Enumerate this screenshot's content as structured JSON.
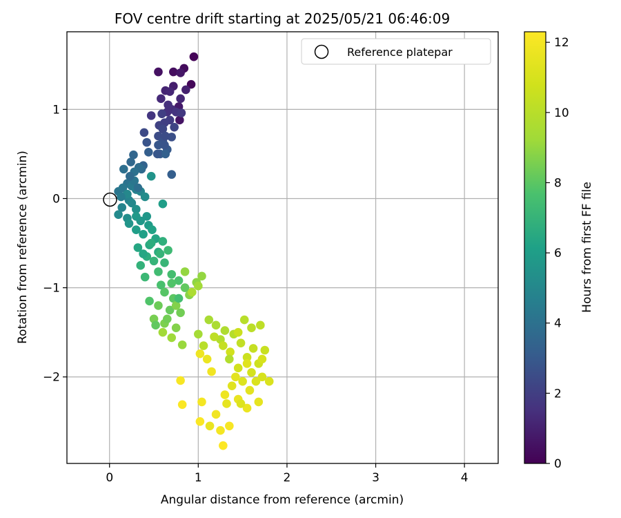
{
  "chart_data": {
    "type": "scatter",
    "title": "FOV centre drift starting at 2025/05/21 06:46:09",
    "xlabel": "Angular distance from reference (arcmin)",
    "ylabel": "Rotation from reference (arcmin)",
    "xlim": [
      -0.48,
      4.38
    ],
    "ylim": [
      -2.97,
      1.87
    ],
    "xticks": [
      0,
      1,
      2,
      3,
      4
    ],
    "yticks": [
      1,
      0,
      -1,
      -2
    ],
    "grid": true,
    "legend": {
      "placement": "top-right",
      "label": "Reference platepar"
    },
    "reference_point": {
      "x": 0,
      "y": 0
    },
    "colorbar": {
      "label": "Hours from first FF file",
      "range": [
        0,
        12.3
      ],
      "ticks": [
        0,
        2,
        4,
        6,
        8,
        10,
        12
      ],
      "colormap": "viridis"
    },
    "series": [
      {
        "points": [
          {
            "x": 0.95,
            "y": 1.59,
            "h": 0.1
          },
          {
            "x": 0.92,
            "y": 1.28,
            "h": 0.2
          },
          {
            "x": 0.84,
            "y": 1.46,
            "h": 0.3
          },
          {
            "x": 0.72,
            "y": 1.42,
            "h": 0.4
          },
          {
            "x": 0.55,
            "y": 1.42,
            "h": 0.5
          },
          {
            "x": 0.79,
            "y": 0.88,
            "h": 0.6
          },
          {
            "x": 0.8,
            "y": 1.41,
            "h": 0.7
          },
          {
            "x": 0.78,
            "y": 1.03,
            "h": 0.8
          },
          {
            "x": 0.72,
            "y": 1.26,
            "h": 0.9
          },
          {
            "x": 0.86,
            "y": 1.22,
            "h": 1.0
          },
          {
            "x": 0.63,
            "y": 1.21,
            "h": 1.1
          },
          {
            "x": 0.68,
            "y": 1.2,
            "h": 1.2
          },
          {
            "x": 0.58,
            "y": 1.12,
            "h": 1.3
          },
          {
            "x": 0.7,
            "y": 1.0,
            "h": 1.4
          },
          {
            "x": 0.65,
            "y": 0.97,
            "h": 1.5
          },
          {
            "x": 0.75,
            "y": 0.97,
            "h": 1.6
          },
          {
            "x": 0.47,
            "y": 0.93,
            "h": 1.7
          },
          {
            "x": 0.81,
            "y": 0.96,
            "h": 1.8
          },
          {
            "x": 0.68,
            "y": 0.88,
            "h": 1.9
          },
          {
            "x": 0.62,
            "y": 0.85,
            "h": 2.0
          },
          {
            "x": 0.56,
            "y": 0.82,
            "h": 2.1
          },
          {
            "x": 0.73,
            "y": 0.8,
            "h": 2.2
          },
          {
            "x": 0.6,
            "y": 0.78,
            "h": 2.3
          },
          {
            "x": 0.39,
            "y": 0.74,
            "h": 2.4
          },
          {
            "x": 0.55,
            "y": 0.7,
            "h": 2.5
          },
          {
            "x": 0.7,
            "y": 0.69,
            "h": 2.6
          },
          {
            "x": 0.6,
            "y": 0.64,
            "h": 2.7
          },
          {
            "x": 0.42,
            "y": 0.63,
            "h": 2.8
          },
          {
            "x": 0.55,
            "y": 0.6,
            "h": 2.9
          },
          {
            "x": 0.65,
            "y": 0.55,
            "h": 3.0
          },
          {
            "x": 0.57,
            "y": 0.5,
            "h": 3.1
          },
          {
            "x": 0.7,
            "y": 0.27,
            "h": 3.2
          },
          {
            "x": 0.63,
            "y": 0.5,
            "h": 3.3
          },
          {
            "x": 0.38,
            "y": 0.37,
            "h": 3.4
          },
          {
            "x": 0.27,
            "y": 0.49,
            "h": 3.5
          },
          {
            "x": 0.24,
            "y": 0.41,
            "h": 3.6
          },
          {
            "x": 0.36,
            "y": 0.33,
            "h": 3.7
          },
          {
            "x": 0.33,
            "y": 0.35,
            "h": 3.8
          },
          {
            "x": 0.16,
            "y": 0.33,
            "h": 3.9
          },
          {
            "x": 0.28,
            "y": 0.3,
            "h": 4.0
          },
          {
            "x": 0.2,
            "y": 0.17,
            "h": 4.1
          },
          {
            "x": 0.1,
            "y": 0.08,
            "h": 4.2
          },
          {
            "x": 0.15,
            "y": 0.12,
            "h": 4.3
          },
          {
            "x": 0.25,
            "y": 0.14,
            "h": 4.4
          },
          {
            "x": 0.18,
            "y": 0.03,
            "h": 4.5
          },
          {
            "x": 0.3,
            "y": 0.1,
            "h": 4.6
          },
          {
            "x": 0.22,
            "y": -0.02,
            "h": 4.7
          },
          {
            "x": 0.14,
            "y": -0.1,
            "h": 4.8
          },
          {
            "x": 0.35,
            "y": 0.08,
            "h": 4.9
          },
          {
            "x": 0.25,
            "y": -0.05,
            "h": 5.0
          },
          {
            "x": 0.1,
            "y": -0.18,
            "h": 5.1
          },
          {
            "x": 0.4,
            "y": 0.02,
            "h": 5.2
          },
          {
            "x": 0.2,
            "y": -0.22,
            "h": 5.3
          },
          {
            "x": 0.3,
            "y": -0.12,
            "h": 5.4
          },
          {
            "x": 0.47,
            "y": 0.25,
            "h": 5.5
          },
          {
            "x": 0.22,
            "y": -0.28,
            "h": 5.6
          },
          {
            "x": 0.35,
            "y": -0.25,
            "h": 5.7
          },
          {
            "x": 0.3,
            "y": -0.2,
            "h": 5.8
          },
          {
            "x": 0.44,
            "y": -0.3,
            "h": 5.9
          },
          {
            "x": 0.6,
            "y": -0.06,
            "h": 6.0
          },
          {
            "x": 0.38,
            "y": -0.4,
            "h": 6.1
          },
          {
            "x": 0.48,
            "y": -0.35,
            "h": 6.2
          },
          {
            "x": 0.52,
            "y": -0.45,
            "h": 6.3
          },
          {
            "x": 0.32,
            "y": -0.55,
            "h": 6.4
          },
          {
            "x": 0.45,
            "y": -0.52,
            "h": 6.5
          },
          {
            "x": 0.55,
            "y": -0.6,
            "h": 6.6
          },
          {
            "x": 0.42,
            "y": -0.65,
            "h": 6.7
          },
          {
            "x": 0.6,
            "y": -0.48,
            "h": 6.8
          },
          {
            "x": 0.35,
            "y": -0.75,
            "h": 6.9
          },
          {
            "x": 0.5,
            "y": -0.7,
            "h": 7.0
          },
          {
            "x": 0.62,
            "y": -0.72,
            "h": 7.1
          },
          {
            "x": 0.4,
            "y": -0.88,
            "h": 7.2
          },
          {
            "x": 0.66,
            "y": -0.58,
            "h": 7.3
          },
          {
            "x": 0.55,
            "y": -0.82,
            "h": 7.4
          },
          {
            "x": 0.7,
            "y": -0.85,
            "h": 7.5
          },
          {
            "x": 0.58,
            "y": -0.97,
            "h": 7.6
          },
          {
            "x": 0.78,
            "y": -0.92,
            "h": 7.7
          },
          {
            "x": 0.45,
            "y": -1.15,
            "h": 7.8
          },
          {
            "x": 0.62,
            "y": -1.05,
            "h": 7.9
          },
          {
            "x": 0.72,
            "y": -1.12,
            "h": 8.0
          },
          {
            "x": 0.85,
            "y": -1.0,
            "h": 8.1
          },
          {
            "x": 0.68,
            "y": -1.25,
            "h": 8.2
          },
          {
            "x": 0.55,
            "y": -1.2,
            "h": 8.3
          },
          {
            "x": 0.8,
            "y": -1.28,
            "h": 8.4
          },
          {
            "x": 0.5,
            "y": -1.35,
            "h": 8.5
          },
          {
            "x": 0.62,
            "y": -1.4,
            "h": 8.6
          },
          {
            "x": 0.75,
            "y": -1.45,
            "h": 8.7
          },
          {
            "x": 0.9,
            "y": -1.08,
            "h": 8.8
          },
          {
            "x": 0.98,
            "y": -0.94,
            "h": 8.9
          },
          {
            "x": 1.04,
            "y": -0.87,
            "h": 9.0
          },
          {
            "x": 0.82,
            "y": -1.64,
            "h": 9.1
          },
          {
            "x": 0.7,
            "y": -1.56,
            "h": 9.2
          },
          {
            "x": 0.6,
            "y": -1.5,
            "h": 9.3
          },
          {
            "x": 1.0,
            "y": -1.52,
            "h": 9.4
          },
          {
            "x": 1.12,
            "y": -1.36,
            "h": 9.5
          },
          {
            "x": 1.2,
            "y": -1.42,
            "h": 9.6
          },
          {
            "x": 1.3,
            "y": -1.48,
            "h": 9.7
          },
          {
            "x": 1.25,
            "y": -1.58,
            "h": 9.8
          },
          {
            "x": 1.4,
            "y": -1.52,
            "h": 9.9
          },
          {
            "x": 1.52,
            "y": -1.36,
            "h": 10.0
          },
          {
            "x": 1.6,
            "y": -1.45,
            "h": 10.1
          },
          {
            "x": 1.7,
            "y": -1.42,
            "h": 10.2
          },
          {
            "x": 1.48,
            "y": -1.62,
            "h": 10.3
          },
          {
            "x": 1.62,
            "y": -1.68,
            "h": 10.4
          },
          {
            "x": 1.75,
            "y": -1.7,
            "h": 10.5
          },
          {
            "x": 1.55,
            "y": -1.78,
            "h": 10.6
          },
          {
            "x": 1.68,
            "y": -1.85,
            "h": 10.7
          },
          {
            "x": 1.45,
            "y": -1.9,
            "h": 10.8
          },
          {
            "x": 1.6,
            "y": -1.95,
            "h": 10.9
          },
          {
            "x": 1.72,
            "y": -2.0,
            "h": 11.0
          },
          {
            "x": 1.8,
            "y": -2.05,
            "h": 11.1
          },
          {
            "x": 1.5,
            "y": -2.05,
            "h": 11.2
          },
          {
            "x": 1.38,
            "y": -2.1,
            "h": 11.3
          },
          {
            "x": 1.58,
            "y": -2.15,
            "h": 11.4
          },
          {
            "x": 1.68,
            "y": -2.28,
            "h": 11.5
          },
          {
            "x": 1.45,
            "y": -2.25,
            "h": 11.6
          },
          {
            "x": 1.55,
            "y": -2.35,
            "h": 11.7
          },
          {
            "x": 1.3,
            "y": -2.2,
            "h": 11.8
          },
          {
            "x": 1.2,
            "y": -2.42,
            "h": 11.9
          },
          {
            "x": 1.25,
            "y": -2.6,
            "h": 12.0
          },
          {
            "x": 1.35,
            "y": -2.55,
            "h": 12.1
          },
          {
            "x": 1.02,
            "y": -2.5,
            "h": 12.2
          },
          {
            "x": 1.28,
            "y": -2.77,
            "h": 12.25
          },
          {
            "x": 0.82,
            "y": -2.31,
            "h": 12.2
          },
          {
            "x": 0.8,
            "y": -2.04,
            "h": 12.1
          },
          {
            "x": 1.04,
            "y": -2.28,
            "h": 12.0
          },
          {
            "x": 1.15,
            "y": -1.94,
            "h": 11.9
          },
          {
            "x": 1.02,
            "y": -1.74,
            "h": 11.8
          },
          {
            "x": 1.1,
            "y": -1.8,
            "h": 11.7
          },
          {
            "x": 1.13,
            "y": -2.55,
            "h": 11.6
          },
          {
            "x": 1.32,
            "y": -2.3,
            "h": 11.5
          },
          {
            "x": 1.42,
            "y": -2.0,
            "h": 11.4
          },
          {
            "x": 1.55,
            "y": -1.85,
            "h": 11.3
          },
          {
            "x": 1.48,
            "y": -2.3,
            "h": 11.2
          },
          {
            "x": 1.65,
            "y": -2.05,
            "h": 11.1
          },
          {
            "x": 1.72,
            "y": -1.8,
            "h": 11.0
          },
          {
            "x": 1.36,
            "y": -1.72,
            "h": 10.8
          },
          {
            "x": 1.45,
            "y": -1.5,
            "h": 10.6
          },
          {
            "x": 1.28,
            "y": -1.65,
            "h": 10.4
          },
          {
            "x": 1.18,
            "y": -1.55,
            "h": 10.2
          },
          {
            "x": 1.06,
            "y": -1.65,
            "h": 10.0
          },
          {
            "x": 1.35,
            "y": -1.8,
            "h": 9.8
          },
          {
            "x": 0.93,
            "y": -1.05,
            "h": 9.6
          },
          {
            "x": 1.0,
            "y": -0.98,
            "h": 9.3
          },
          {
            "x": 0.85,
            "y": -0.82,
            "h": 9.0
          },
          {
            "x": 0.75,
            "y": -1.2,
            "h": 8.7
          },
          {
            "x": 0.65,
            "y": -1.35,
            "h": 8.4
          },
          {
            "x": 0.52,
            "y": -1.42,
            "h": 8.1
          },
          {
            "x": 0.7,
            "y": -0.95,
            "h": 7.8
          },
          {
            "x": 0.78,
            "y": -1.12,
            "h": 7.5
          },
          {
            "x": 0.57,
            "y": -0.62,
            "h": 7.0
          },
          {
            "x": 0.47,
            "y": -0.5,
            "h": 6.7
          },
          {
            "x": 0.38,
            "y": -0.62,
            "h": 6.4
          },
          {
            "x": 0.3,
            "y": -0.35,
            "h": 6.0
          },
          {
            "x": 0.42,
            "y": -0.2,
            "h": 5.7
          },
          {
            "x": 0.2,
            "y": 0.05,
            "h": 5.0
          },
          {
            "x": 0.13,
            "y": 0.02,
            "h": 4.5
          },
          {
            "x": 0.28,
            "y": 0.2,
            "h": 4.2
          },
          {
            "x": 0.32,
            "y": 0.12,
            "h": 3.9
          },
          {
            "x": 0.23,
            "y": 0.25,
            "h": 3.7
          },
          {
            "x": 0.44,
            "y": 0.52,
            "h": 3.2
          },
          {
            "x": 0.62,
            "y": 0.6,
            "h": 2.8
          },
          {
            "x": 0.59,
            "y": 0.95,
            "h": 2.0
          },
          {
            "x": 0.66,
            "y": 1.05,
            "h": 1.5
          },
          {
            "x": 0.8,
            "y": 1.12,
            "h": 1.2
          },
          {
            "x": 0.63,
            "y": 0.7,
            "h": 2.5
          },
          {
            "x": 0.54,
            "y": 0.5,
            "h": 2.9
          }
        ]
      }
    ]
  }
}
